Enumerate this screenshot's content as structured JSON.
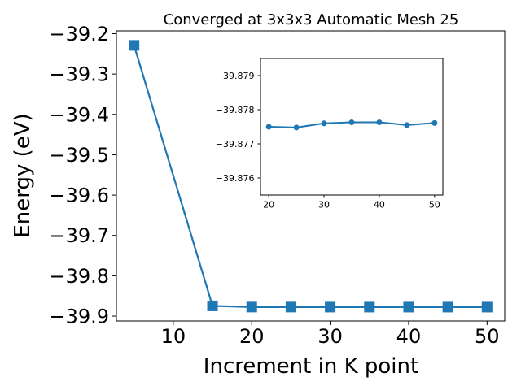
{
  "chart_data": [
    {
      "type": "line",
      "title": "Converged at 3x3x3 Automatic Mesh 25",
      "xlabel": "Increment in K point",
      "ylabel": "Energy (eV)",
      "xlim": [
        2.75,
        52.25
      ],
      "ylim": [
        -39.912,
        -39.193
      ],
      "x_ticks": [
        10,
        20,
        30,
        40,
        50
      ],
      "x_tick_labels": [
        "10",
        "20",
        "30",
        "40",
        "50"
      ],
      "y_ticks": [
        -39.9,
        -39.8,
        -39.7,
        -39.6,
        -39.5,
        -39.4,
        -39.3,
        -39.2
      ],
      "y_tick_labels": [
        "−39.9",
        "−39.8",
        "−39.7",
        "−39.6",
        "−39.5",
        "−39.4",
        "−39.3",
        "−39.2"
      ],
      "grid": false,
      "marker": "square",
      "color": "#1f77b4",
      "series": [
        {
          "x": [
            5,
            15,
            20,
            25,
            30,
            35,
            40,
            45,
            50
          ],
          "values": [
            -39.229,
            -39.8746,
            -39.8775,
            -39.8775,
            -39.8776,
            -39.8776,
            -39.8776,
            -39.8776,
            -39.8776
          ]
        }
      ]
    },
    {
      "type": "line",
      "title": "",
      "xlabel": "",
      "ylabel": "",
      "xlim": [
        18.5,
        51.5
      ],
      "ylim": [
        -39.8795,
        -39.8755
      ],
      "x_ticks": [
        20,
        30,
        40,
        50
      ],
      "x_tick_labels": [
        "20",
        "30",
        "40",
        "50"
      ],
      "y_ticks": [
        -39.879,
        -39.878,
        -39.877,
        -39.876
      ],
      "y_tick_labels": [
        "−39.879",
        "−39.878",
        "−39.877",
        "−39.876"
      ],
      "y_inverted": true,
      "grid": false,
      "marker": "circle",
      "color": "#1f77b4",
      "series": [
        {
          "x": [
            20,
            25,
            30,
            35,
            40,
            45,
            50
          ],
          "values": [
            -39.8775,
            -39.87748,
            -39.8776,
            -39.87763,
            -39.87763,
            -39.87755,
            -39.87761
          ]
        }
      ]
    }
  ]
}
